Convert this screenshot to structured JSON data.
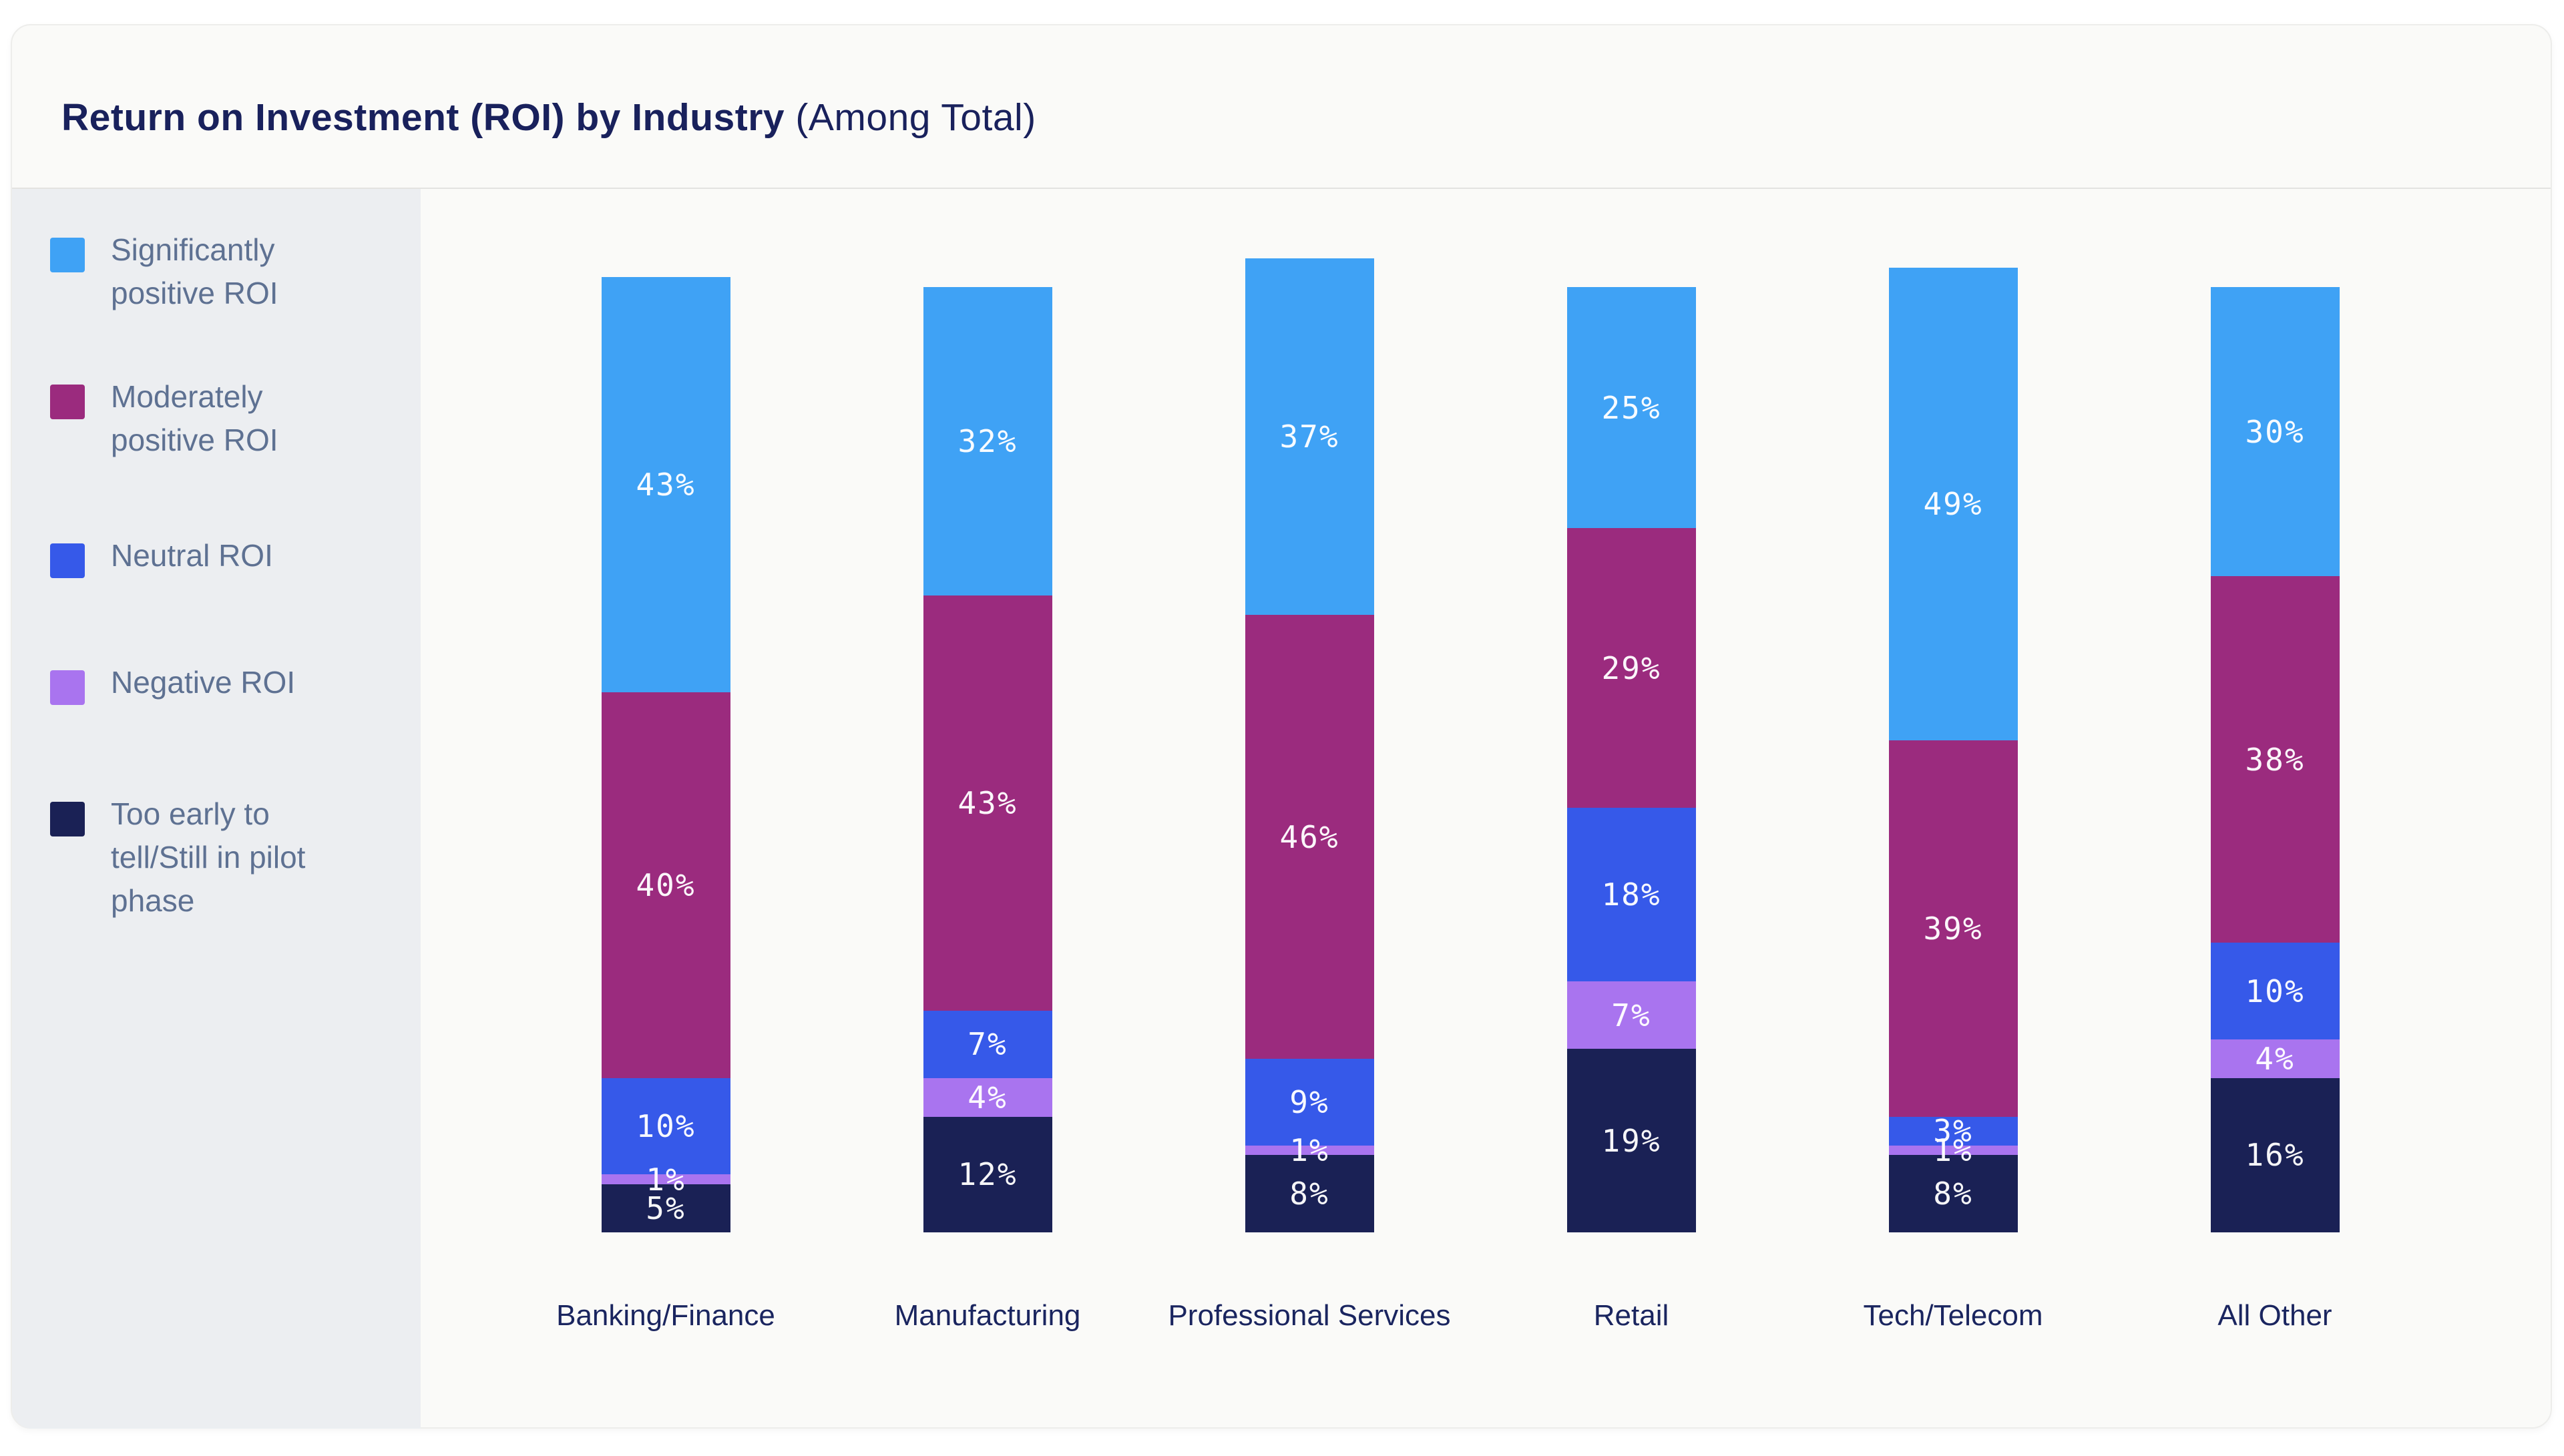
{
  "card": {
    "title_bold": "Return on Investment (ROI) by Industry",
    "title_regular": " (Among Total)"
  },
  "legend": {
    "items": [
      {
        "label": "Significantly\npositive ROI",
        "color": "#3fa2f5"
      },
      {
        "label": "Moderately\npositive ROI",
        "color": "#9b2b7e"
      },
      {
        "label": "Neutral ROI",
        "color": "#3659e9"
      },
      {
        "label": "Negative ROI",
        "color": "#a974ef"
      },
      {
        "label": "Too early to\ntell/Still in pilot\nphase",
        "color": "#1a2155"
      }
    ]
  },
  "chart_data": {
    "type": "bar",
    "stacked": true,
    "title": "Return on Investment (ROI) by Industry (Among Total)",
    "categories": [
      "Banking/Finance",
      "Manufacturing",
      "Professional Services",
      "Retail",
      "Tech/Telecom",
      "All Other"
    ],
    "series": [
      {
        "name": "Significantly positive ROI",
        "color": "#3fa2f5",
        "values": [
          43,
          32,
          37,
          25,
          49,
          30
        ]
      },
      {
        "name": "Moderately positive ROI",
        "color": "#9b2b7e",
        "values": [
          40,
          43,
          46,
          29,
          39,
          38
        ]
      },
      {
        "name": "Neutral ROI",
        "color": "#3659e9",
        "values": [
          10,
          7,
          9,
          18,
          3,
          10
        ]
      },
      {
        "name": "Negative ROI",
        "color": "#a974ef",
        "values": [
          1,
          4,
          1,
          7,
          1,
          4
        ]
      },
      {
        "name": "Too early to tell/Still in pilot phase",
        "color": "#1a2155",
        "values": [
          5,
          12,
          8,
          19,
          8,
          16
        ]
      }
    ],
    "value_suffix": "%",
    "ylim": [
      0,
      100
    ],
    "grid": false,
    "legend_position": "left",
    "value_labels": "inside-center"
  }
}
